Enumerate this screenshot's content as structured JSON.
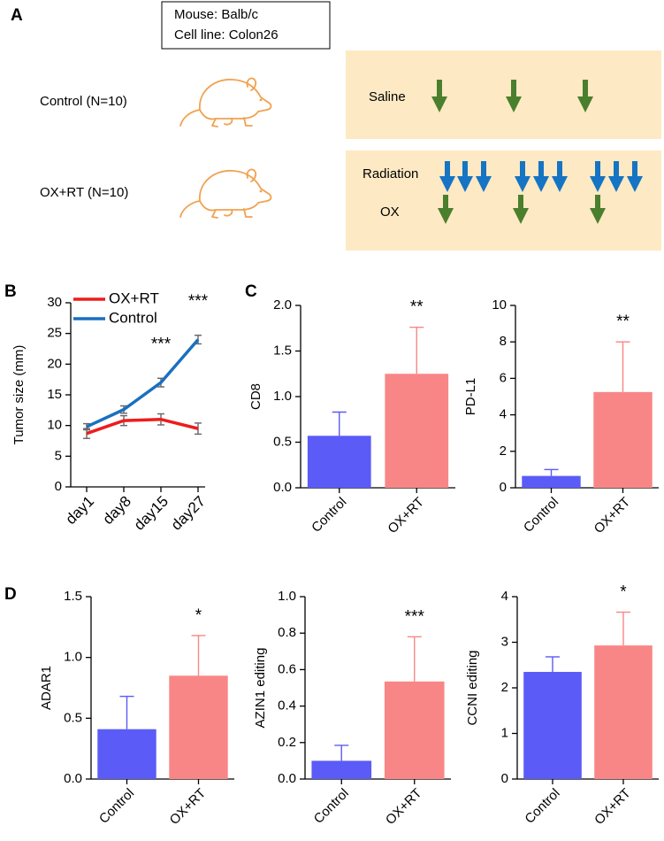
{
  "panel_labels": [
    "A",
    "B",
    "C",
    "D"
  ],
  "diagram": {
    "info_box": [
      "Mouse: Balb/c",
      "Cell line: Colon26"
    ],
    "groups": [
      {
        "label": "Control (N=10)",
        "treatments": [
          "Saline"
        ]
      },
      {
        "label": "OX+RT (N=10)",
        "treatments": [
          "Radiation",
          "OX"
        ]
      }
    ]
  },
  "chart_data": [
    {
      "type": "line",
      "ylabel": "Tumor size (mm)",
      "categories": [
        "day1",
        "day8",
        "day15",
        "day27"
      ],
      "series": [
        {
          "name": "OX+RT",
          "color": "#ee1c1c",
          "values": [
            8.7,
            10.8,
            11.0,
            9.5
          ],
          "errors": [
            0.8,
            0.8,
            0.9,
            0.9
          ]
        },
        {
          "name": "Control",
          "color": "#1a6fc0",
          "values": [
            9.8,
            12.6,
            17.0,
            24.0
          ],
          "errors": [
            0.5,
            0.6,
            0.7,
            0.7
          ]
        }
      ],
      "annotations": [
        {
          "text": "***",
          "x": "day15"
        },
        {
          "text": "***",
          "x": "day27"
        }
      ],
      "legend": "upper left",
      "ylim": [
        0,
        30
      ],
      "yticks": [
        0,
        5,
        10,
        15,
        20,
        25,
        30
      ],
      "grid": false
    },
    {
      "type": "bar",
      "ylabel": "CD8",
      "categories": [
        "Control",
        "OX+RT"
      ],
      "values": [
        0.57,
        1.25
      ],
      "errors": [
        0.26,
        0.51
      ],
      "colors": [
        "#5b5bf7",
        "#f98686"
      ],
      "significance": "**",
      "ylim": [
        0,
        2
      ],
      "yticks": [
        {
          "value": 0,
          "label": "0.0"
        },
        0.5,
        {
          "value": 1,
          "label": "1.0"
        },
        1.5,
        {
          "value": 2,
          "label": "2.0"
        }
      ],
      "grid": false
    },
    {
      "type": "bar",
      "ylabel": "PD-L1",
      "categories": [
        "Control",
        "OX+RT"
      ],
      "values": [
        0.65,
        5.25
      ],
      "errors": [
        0.35,
        2.75
      ],
      "colors": [
        "#5b5bf7",
        "#f98686"
      ],
      "significance": "**",
      "ylim": [
        0,
        10
      ],
      "yticks": [
        0,
        2,
        4,
        6,
        8,
        10
      ],
      "grid": false
    },
    {
      "type": "bar",
      "ylabel": "ADAR1",
      "categories": [
        "Control",
        "OX+RT"
      ],
      "values": [
        0.41,
        0.85
      ],
      "errors": [
        0.27,
        0.33
      ],
      "colors": [
        "#5b5bf7",
        "#f98686"
      ],
      "significance": "*",
      "ylim": [
        0,
        1.5
      ],
      "yticks": [
        {
          "value": 0,
          "label": "0.0"
        },
        0.5,
        {
          "value": 1,
          "label": "1.0"
        },
        1.5
      ],
      "grid": false
    },
    {
      "type": "bar",
      "ylabel": "AZIN1 editing",
      "categories": [
        "Control",
        "OX+RT"
      ],
      "values": [
        0.1,
        0.535
      ],
      "errors": [
        0.085,
        0.245
      ],
      "colors": [
        "#5b5bf7",
        "#f98686"
      ],
      "significance": "***",
      "ylim": [
        0,
        1
      ],
      "yticks": [
        {
          "value": 0,
          "label": "0.0"
        },
        0.2,
        0.4,
        0.6,
        0.8,
        {
          "value": 1,
          "label": "1.0"
        }
      ],
      "grid": false
    },
    {
      "type": "bar",
      "ylabel": "CCNI editing",
      "categories": [
        "Control",
        "OX+RT"
      ],
      "values": [
        2.35,
        2.93
      ],
      "errors": [
        0.33,
        0.73
      ],
      "colors": [
        "#5b5bf7",
        "#f98686"
      ],
      "significance": "*",
      "ylim": [
        0,
        4
      ],
      "yticks": [
        0,
        1,
        2,
        3,
        4
      ],
      "grid": false
    }
  ]
}
